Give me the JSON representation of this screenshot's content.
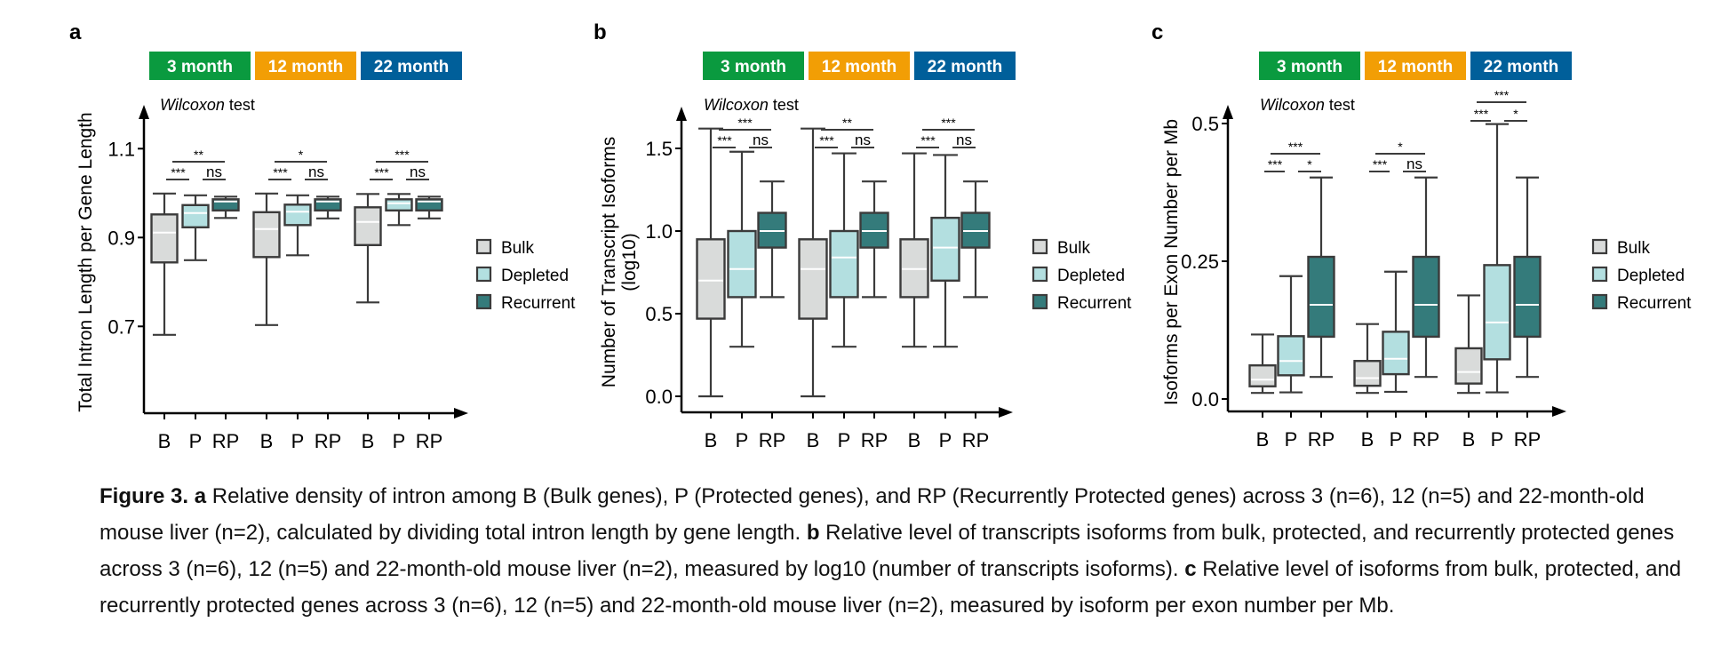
{
  "figure": {
    "caption": {
      "label": "Figure 3.",
      "parts": [
        {
          "bold": "a",
          "text": " Relative density of intron among B (Bulk genes), P (Protected genes), and RP (Recurrently Protected genes) across 3 (n=6), 12 (n=5) and 22-month-old mouse liver (n=2), calculated by dividing total intron length by gene length. "
        },
        {
          "bold": "b",
          "text": " Relative level of transcripts isoforms from bulk, protected, and recurrently protected genes across 3 (n=6), 12 (n=5) and 22-month-old mouse liver (n=2), measured by log10 (number of transcripts isoforms). "
        },
        {
          "bold": "c",
          "text": " Relative level of isoforms from bulk, protected, and recurrently protected genes across 3 (n=6), 12 (n=5) and 22-month-old mouse liver (n=2), measured by isoform per exon number per Mb."
        }
      ]
    },
    "age_groups": [
      {
        "label": "3 month",
        "color": "#0a9a3f"
      },
      {
        "label": "12 month",
        "color": "#f29e05"
      },
      {
        "label": "22 month",
        "color": "#005f9a"
      }
    ],
    "legend": [
      {
        "label": "Bulk",
        "color": "#d9dbda"
      },
      {
        "label": "Depleted",
        "color": "#b3dfe0"
      },
      {
        "label": "Recurrent",
        "color": "#347b7b"
      }
    ],
    "test_label_italic": "Wilcoxon",
    "test_label_rest": " test"
  },
  "chart_data": [
    {
      "panel": "a",
      "type": "box",
      "ylabel": "Total Intron Length per Gene Length",
      "xlabel": "",
      "yticks": [
        0.7,
        0.9,
        1.1
      ],
      "ytick_labels": [
        "0.7",
        "0.9",
        "1.1"
      ],
      "ylim": [
        0.56,
        1.17
      ],
      "categories": [
        "B",
        "P",
        "RP",
        "B",
        "P",
        "RP",
        "B",
        "P",
        "RP"
      ],
      "groups": [
        "3 month",
        "12 month",
        "22 month"
      ],
      "boxes": [
        {
          "group": "3 month",
          "cat": "B",
          "series": "Bulk",
          "min": 0.681,
          "q1": 0.844,
          "median": 0.911,
          "q3": 0.952,
          "max": 0.999
        },
        {
          "group": "3 month",
          "cat": "P",
          "series": "Depleted",
          "min": 0.849,
          "q1": 0.923,
          "median": 0.955,
          "q3": 0.973,
          "max": 0.995
        },
        {
          "group": "3 month",
          "cat": "RP",
          "series": "Recurrent",
          "min": 0.944,
          "q1": 0.961,
          "median": 0.981,
          "q3": 0.986,
          "max": 0.992
        },
        {
          "group": "12 month",
          "cat": "B",
          "series": "Bulk",
          "min": 0.703,
          "q1": 0.856,
          "median": 0.919,
          "q3": 0.957,
          "max": 0.999
        },
        {
          "group": "12 month",
          "cat": "P",
          "series": "Depleted",
          "min": 0.86,
          "q1": 0.928,
          "median": 0.958,
          "q3": 0.974,
          "max": 0.995
        },
        {
          "group": "12 month",
          "cat": "RP",
          "series": "Recurrent",
          "min": 0.943,
          "q1": 0.961,
          "median": 0.981,
          "q3": 0.986,
          "max": 0.992
        },
        {
          "group": "22 month",
          "cat": "B",
          "series": "Bulk",
          "min": 0.754,
          "q1": 0.883,
          "median": 0.935,
          "q3": 0.968,
          "max": 0.998
        },
        {
          "group": "22 month",
          "cat": "P",
          "series": "Depleted",
          "min": 0.928,
          "q1": 0.961,
          "median": 0.977,
          "q3": 0.986,
          "max": 0.998
        },
        {
          "group": "22 month",
          "cat": "RP",
          "series": "Recurrent",
          "min": 0.943,
          "q1": 0.961,
          "median": 0.981,
          "q3": 0.986,
          "max": 0.992
        }
      ],
      "significance": [
        {
          "group": "3 month",
          "BvRP": "**",
          "BvP": "***",
          "PvRP": "ns"
        },
        {
          "group": "12 month",
          "BvRP": "*",
          "BvP": "***",
          "PvRP": "ns"
        },
        {
          "group": "22 month",
          "BvRP": "***",
          "BvP": "***",
          "PvRP": "ns"
        }
      ]
    },
    {
      "panel": "b",
      "type": "box",
      "ylabel": "Number of Transcript Isoforms",
      "ylabel2": "(log10)",
      "xlabel": "",
      "yticks": [
        0.0,
        0.5,
        1.0,
        1.5
      ],
      "ytick_labels": [
        "0.0",
        "0.5",
        "1.0",
        "1.5"
      ],
      "ylim": [
        -0.1,
        1.72
      ],
      "categories": [
        "B",
        "P",
        "RP",
        "B",
        "P",
        "RP",
        "B",
        "P",
        "RP"
      ],
      "groups": [
        "3 month",
        "12 month",
        "22 month"
      ],
      "boxes": [
        {
          "group": "3 month",
          "cat": "B",
          "series": "Bulk",
          "min": 0.0,
          "q1": 0.47,
          "median": 0.7,
          "q3": 0.95,
          "max": 1.62
        },
        {
          "group": "3 month",
          "cat": "P",
          "series": "Depleted",
          "min": 0.3,
          "q1": 0.6,
          "median": 0.77,
          "q3": 1.0,
          "max": 1.48
        },
        {
          "group": "3 month",
          "cat": "RP",
          "series": "Recurrent",
          "min": 0.6,
          "q1": 0.9,
          "median": 1.0,
          "q3": 1.11,
          "max": 1.3
        },
        {
          "group": "12 month",
          "cat": "B",
          "series": "Bulk",
          "min": 0.0,
          "q1": 0.47,
          "median": 0.77,
          "q3": 0.95,
          "max": 1.62
        },
        {
          "group": "12 month",
          "cat": "P",
          "series": "Depleted",
          "min": 0.3,
          "q1": 0.6,
          "median": 0.84,
          "q3": 1.0,
          "max": 1.47
        },
        {
          "group": "12 month",
          "cat": "RP",
          "series": "Recurrent",
          "min": 0.6,
          "q1": 0.9,
          "median": 1.0,
          "q3": 1.11,
          "max": 1.3
        },
        {
          "group": "22 month",
          "cat": "B",
          "series": "Bulk",
          "min": 0.3,
          "q1": 0.6,
          "median": 0.77,
          "q3": 0.95,
          "max": 1.47
        },
        {
          "group": "22 month",
          "cat": "P",
          "series": "Depleted",
          "min": 0.3,
          "q1": 0.7,
          "median": 0.9,
          "q3": 1.08,
          "max": 1.46
        },
        {
          "group": "22 month",
          "cat": "RP",
          "series": "Recurrent",
          "min": 0.6,
          "q1": 0.9,
          "median": 1.0,
          "q3": 1.11,
          "max": 1.3
        }
      ],
      "significance": [
        {
          "group": "3 month",
          "BvRP": "***",
          "BvP": "***",
          "PvRP": "ns"
        },
        {
          "group": "12 month",
          "BvRP": "**",
          "BvP": "***",
          "PvRP": "ns"
        },
        {
          "group": "22 month",
          "BvRP": "***",
          "BvP": "***",
          "PvRP": "ns"
        }
      ]
    },
    {
      "panel": "c",
      "type": "box",
      "ylabel": "Isoforms per Exon Number per Mb",
      "xlabel": "",
      "yticks": [
        0.0,
        0.25,
        0.5
      ],
      "ytick_labels": [
        "0.0",
        "0.25",
        "0.5"
      ],
      "ylim": [
        -0.02,
        0.54
      ],
      "categories": [
        "B",
        "P",
        "RP",
        "B",
        "P",
        "RP",
        "B",
        "P",
        "RP"
      ],
      "groups": [
        "3 month",
        "12 month",
        "22 month"
      ],
      "boxes": [
        {
          "group": "3 month",
          "cat": "B",
          "series": "Bulk",
          "min": 0.011,
          "q1": 0.023,
          "median": 0.035,
          "q3": 0.061,
          "max": 0.117
        },
        {
          "group": "3 month",
          "cat": "P",
          "series": "Depleted",
          "min": 0.012,
          "q1": 0.043,
          "median": 0.069,
          "q3": 0.114,
          "max": 0.223
        },
        {
          "group": "3 month",
          "cat": "RP",
          "series": "Recurrent",
          "min": 0.04,
          "q1": 0.113,
          "median": 0.171,
          "q3": 0.258,
          "max": 0.402
        },
        {
          "group": "12 month",
          "cat": "B",
          "series": "Bulk",
          "min": 0.011,
          "q1": 0.024,
          "median": 0.038,
          "q3": 0.069,
          "max": 0.136
        },
        {
          "group": "12 month",
          "cat": "P",
          "series": "Depleted",
          "min": 0.013,
          "q1": 0.045,
          "median": 0.073,
          "q3": 0.122,
          "max": 0.231
        },
        {
          "group": "12 month",
          "cat": "RP",
          "series": "Recurrent",
          "min": 0.04,
          "q1": 0.113,
          "median": 0.171,
          "q3": 0.258,
          "max": 0.402
        },
        {
          "group": "22 month",
          "cat": "B",
          "series": "Bulk",
          "min": 0.011,
          "q1": 0.028,
          "median": 0.049,
          "q3": 0.092,
          "max": 0.188
        },
        {
          "group": "22 month",
          "cat": "P",
          "series": "Depleted",
          "min": 0.012,
          "q1": 0.072,
          "median": 0.139,
          "q3": 0.243,
          "max": 0.499
        },
        {
          "group": "22 month",
          "cat": "RP",
          "series": "Recurrent",
          "min": 0.04,
          "q1": 0.113,
          "median": 0.171,
          "q3": 0.258,
          "max": 0.402
        }
      ],
      "significance": [
        {
          "group": "3 month",
          "BvRP": "***",
          "BvP": "***",
          "PvRP": "*"
        },
        {
          "group": "12 month",
          "BvRP": "*",
          "BvP": "***",
          "PvRP": "ns"
        },
        {
          "group": "22 month",
          "BvRP": "***",
          "BvP": "***",
          "PvRP": "*"
        }
      ]
    }
  ]
}
